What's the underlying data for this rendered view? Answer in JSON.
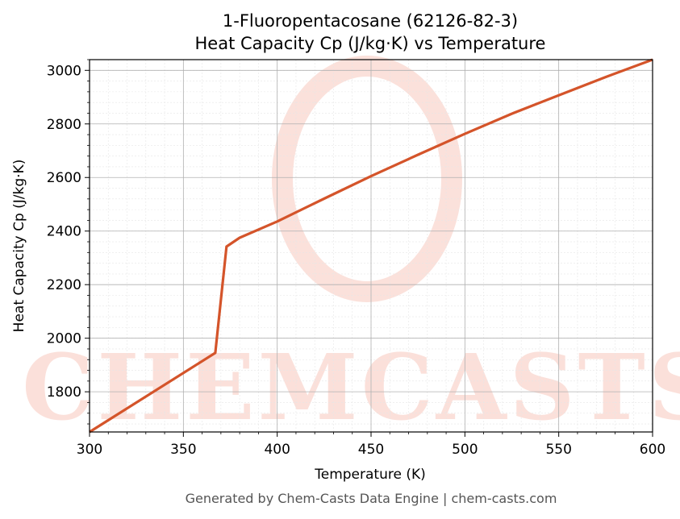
{
  "chart_data": {
    "type": "line",
    "title": "1-Fluoropentacosane (62126-82-3)",
    "subtitle": "Heat Capacity Cp (J/kg·K) vs Temperature",
    "xlabel": "Temperature (K)",
    "ylabel": "Heat Capacity Cp (J/kg·K)",
    "xlim": [
      300,
      600
    ],
    "ylim": [
      1650,
      3040
    ],
    "xticks": [
      300,
      350,
      400,
      450,
      500,
      550,
      600
    ],
    "yticks": [
      1800,
      2000,
      2200,
      2400,
      2600,
      2800,
      3000
    ],
    "grid": true,
    "line_color": "#d4542a",
    "series": [
      {
        "x": [
          300,
          367,
          373,
          380,
          400,
          425,
          450,
          475,
          500,
          525,
          550,
          575,
          600
        ],
        "values": [
          1650,
          1945,
          2342,
          2375,
          2436,
          2521,
          2605,
          2685,
          2763,
          2838,
          2907,
          2975,
          3040
        ]
      }
    ]
  },
  "watermark": {
    "text": "CHEMCASTS",
    "color": "#f8c8bd"
  },
  "footer": "Generated by Chem-Casts Data Engine | chem-casts.com"
}
